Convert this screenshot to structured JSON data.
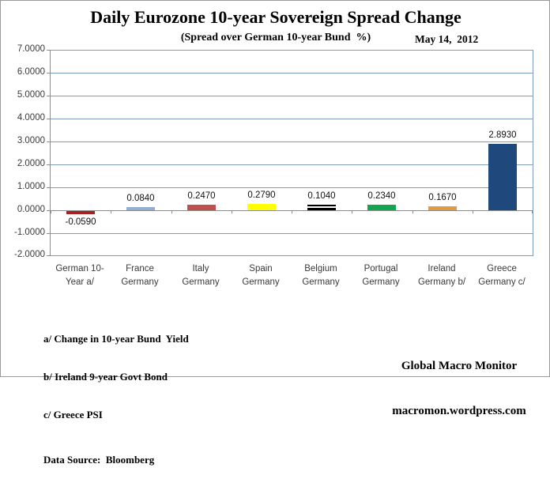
{
  "chart_data": {
    "type": "bar",
    "title": "Daily Eurozone 10-year Sovereign Spread Change",
    "subtitle": "(Spread over German 10-year Bund  %)",
    "date_annotation": "May 14,  2012",
    "categories": [
      "German 10-Year a/",
      "France Germany",
      "Italy Germany",
      "Spain Germany",
      "Belgium Germany",
      "Portugal Germany",
      "Ireland Germany b/",
      "Greece Germany c/"
    ],
    "category_label_lines": [
      [
        "German 10-",
        "Year a/"
      ],
      [
        "France",
        "Germany"
      ],
      [
        "Italy",
        "Germany"
      ],
      [
        "Spain",
        "Germany"
      ],
      [
        "Belgium",
        "Germany"
      ],
      [
        "Portugal",
        "Germany"
      ],
      [
        "Ireland",
        "Germany b/"
      ],
      [
        "Greece",
        "Germany c/"
      ]
    ],
    "values": [
      -0.059,
      0.084,
      0.247,
      0.279,
      0.104,
      0.234,
      0.167,
      2.893
    ],
    "value_labels": [
      "-0.0590",
      "0.0840",
      "0.2470",
      "0.2790",
      "0.1040",
      "0.2340",
      "0.1670",
      "2.8930"
    ],
    "bar_colors": [
      "#A42222",
      "#92AECE",
      "#C0504D",
      "#FFFF00",
      "#000000",
      "#12A64F",
      "#E29A43",
      "#1F497D"
    ],
    "bar_stripe": [
      false,
      false,
      false,
      false,
      true,
      false,
      false,
      false
    ],
    "xlabel": "",
    "ylabel": "",
    "ylim": [
      -2,
      7
    ],
    "ytick_interval": 1,
    "ytick_labels": [
      "7.0000",
      "6.0000",
      "5.0000",
      "4.0000",
      "3.0000",
      "2.0000",
      "1.0000",
      "0.0000",
      "-1.0000",
      "-2.0000"
    ],
    "grid": true,
    "legend": "none",
    "gridline_color": "#7F9DB9",
    "axis_color": "#8C8C8C"
  },
  "footnotes": {
    "a": "a/ Change in 10-year Bund  Yield",
    "b": "b/ Ireland 9-year Govt Bond",
    "c": "c/ Greece PSI",
    "source": "Data Source:  Bloomberg"
  },
  "branding": {
    "line1": "Global Macro Monitor",
    "line2": "macromon.wordpress.com"
  }
}
